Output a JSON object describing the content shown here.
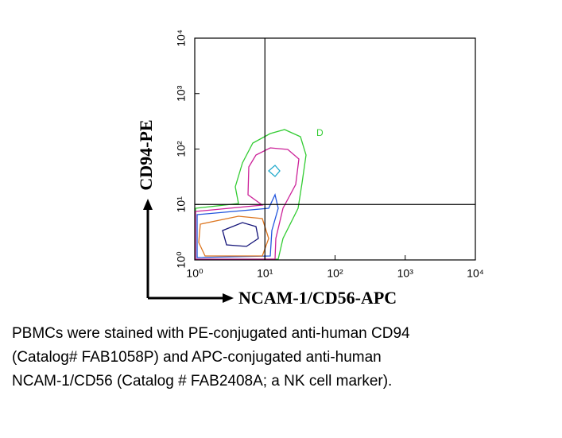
{
  "chart_data": {
    "type": "contour",
    "x_label": "NCAM-1/CD56-APC",
    "y_label": "CD94-PE",
    "log_scale": true,
    "xlim": [
      1,
      10000
    ],
    "ylim": [
      1,
      10000
    ],
    "xticks": [
      {
        "value": 1,
        "label": "10⁰"
      },
      {
        "value": 10,
        "label": "10¹"
      },
      {
        "value": 100,
        "label": "10²"
      },
      {
        "value": 1000,
        "label": "10³"
      },
      {
        "value": 10000,
        "label": "10⁴"
      }
    ],
    "yticks": [
      {
        "value": 1,
        "label": "10⁰"
      },
      {
        "value": 10,
        "label": "10¹"
      },
      {
        "value": 100,
        "label": "10²"
      },
      {
        "value": 1000,
        "label": "10³"
      },
      {
        "value": 10000,
        "label": "10⁴"
      }
    ],
    "quadrant_x": 10,
    "quadrant_y": 10,
    "annotation": "D"
  },
  "caption": [
    "PBMCs were stained with PE-conjugated anti-human CD94",
    "(Catalog# FAB1058P) and APC-conjugated anti-human",
    "NCAM-1/CD56 (Catalog # FAB2408A; a NK cell marker)."
  ]
}
